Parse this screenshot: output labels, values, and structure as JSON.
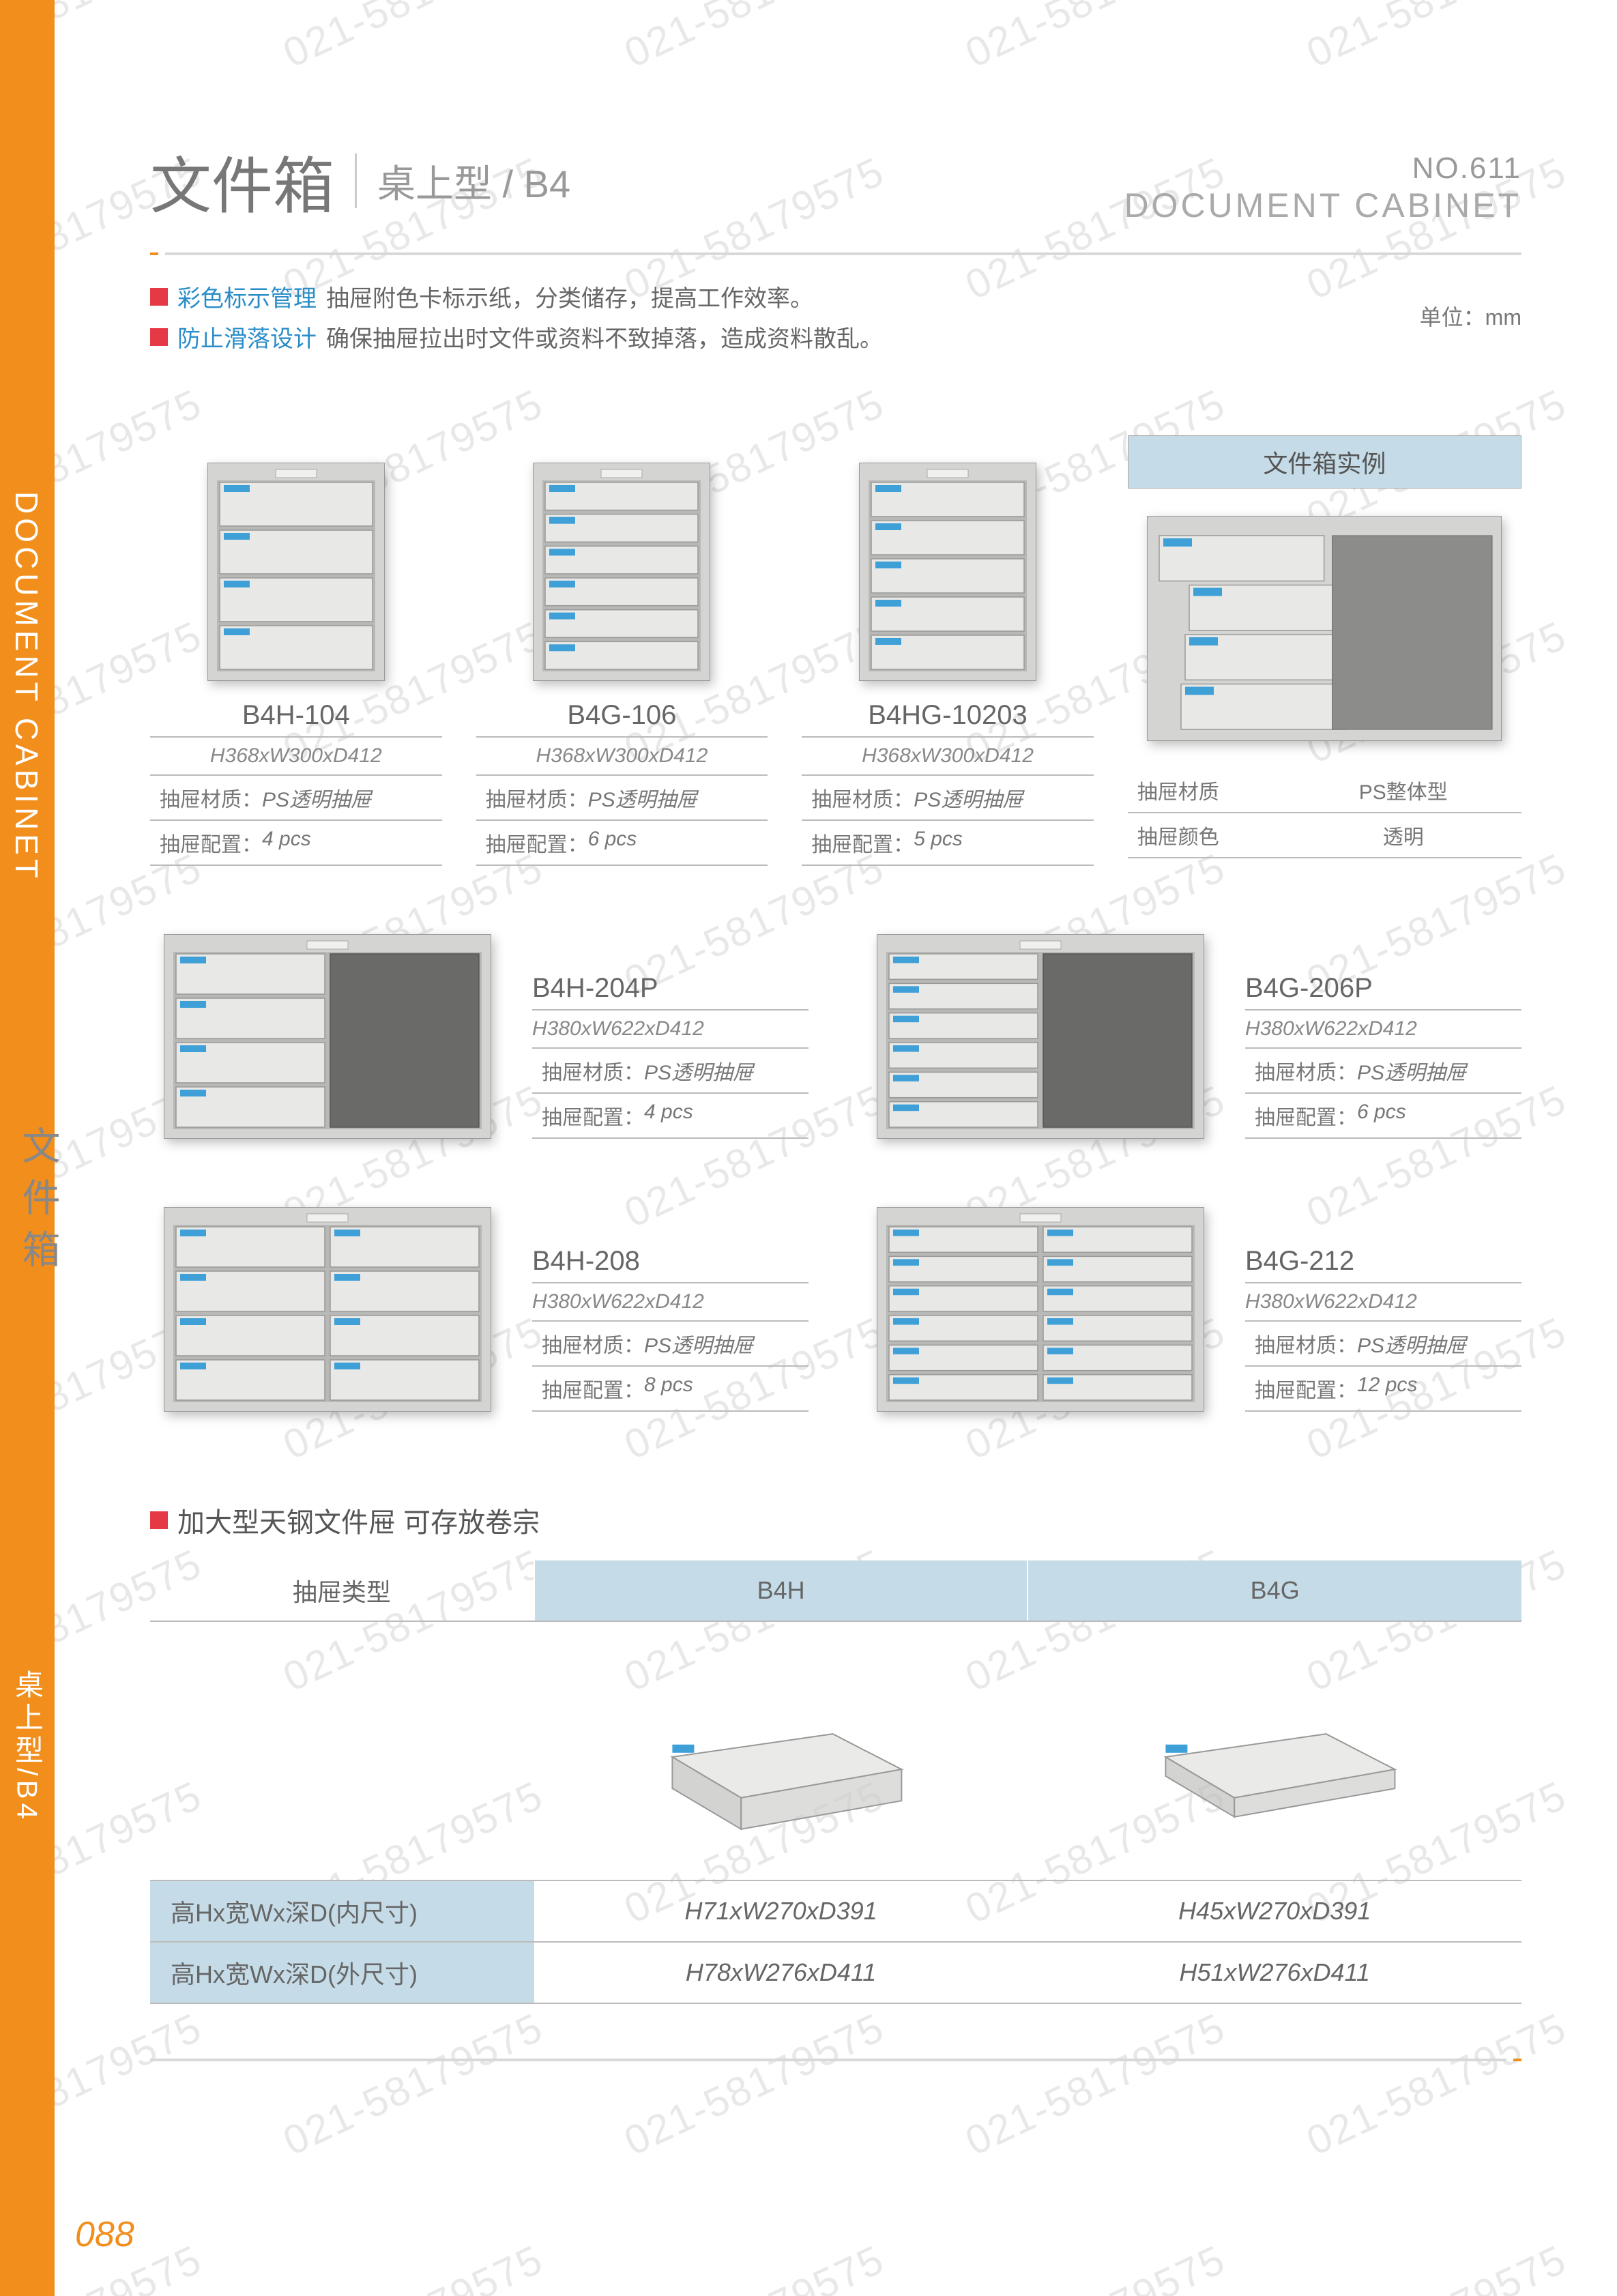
{
  "watermark_text": "021-58179575",
  "colors": {
    "orange": "#f18e1c",
    "red": "#e63946",
    "blue_text": "#2a8dc8",
    "header_blue": "#c5dce8",
    "divider_gray": "#d8d8d8",
    "cabinet_body": "#d4d4d2",
    "cabinet_dark": "#b8b8b6",
    "drawer_face": "#e8e8e6",
    "drawer_tag": "#3fa0d8"
  },
  "header": {
    "title_cn": "文件箱",
    "subtitle": "桌上型 / B4",
    "page_no": "NO.611",
    "title_en": "DOCUMENT CABINET"
  },
  "side": {
    "en_label": "DOCUMENT CABINET",
    "cn_label": "文件箱",
    "subtype_label": "桌上型/B4"
  },
  "page_number": "088",
  "unit_label": "单位：mm",
  "features": [
    {
      "key": "彩色标示管理",
      "text": "抽屉附色卡标示纸，分类储存，提高工作效率。"
    },
    {
      "key": "防止滑落设计",
      "text": "确保抽屉拉出时文件或资料不致掉落，造成资料散乱。"
    }
  ],
  "example_header": "文件箱实例",
  "example_specs": [
    {
      "key": "抽屉材质",
      "val": "PS整体型"
    },
    {
      "key": "抽屉颜色",
      "val": "透明"
    }
  ],
  "spec_labels": {
    "material": "抽屉材质：",
    "material_val": "PS透明抽屉",
    "config": "抽屉配置："
  },
  "products_row1": [
    {
      "model": "B4H-104",
      "dims": "H368xW300xD412",
      "config": "4 pcs",
      "drawers": 4,
      "cols": 1,
      "shelf": false
    },
    {
      "model": "B4G-106",
      "dims": "H368xW300xD412",
      "config": "6 pcs",
      "drawers": 6,
      "cols": 1,
      "shelf": false
    },
    {
      "model": "B4HG-10203",
      "dims": "H368xW300xD412",
      "config": "5 pcs",
      "drawers": 5,
      "cols": 1,
      "shelf": false
    }
  ],
  "products_row2": [
    {
      "model": "B4H-204P",
      "dims": "H380xW622xD412",
      "config": "4 pcs",
      "drawers": 4,
      "cols": 1,
      "shelf": true
    },
    {
      "model": "B4G-206P",
      "dims": "H380xW622xD412",
      "config": "6 pcs",
      "drawers": 6,
      "cols": 1,
      "shelf": true
    }
  ],
  "products_row3": [
    {
      "model": "B4H-208",
      "dims": "H380xW622xD412",
      "config": "8 pcs",
      "drawers": 4,
      "cols": 2,
      "shelf": false
    },
    {
      "model": "B4G-212",
      "dims": "H380xW622xD412",
      "config": "12 pcs",
      "drawers": 6,
      "cols": 2,
      "shelf": false
    }
  ],
  "drawer_section": {
    "title": "加大型天钢文件屉 可存放卷宗",
    "col_label": "抽屉类型",
    "columns": [
      "B4H",
      "B4G"
    ],
    "rows": [
      {
        "label": "高Hx宽Wx深D(内尺寸)",
        "vals": [
          "H71xW270xD391",
          "H45xW270xD391"
        ]
      },
      {
        "label": "高Hx宽Wx深D(外尺寸)",
        "vals": [
          "H78xW276xD411",
          "H51xW276xD411"
        ]
      }
    ]
  }
}
